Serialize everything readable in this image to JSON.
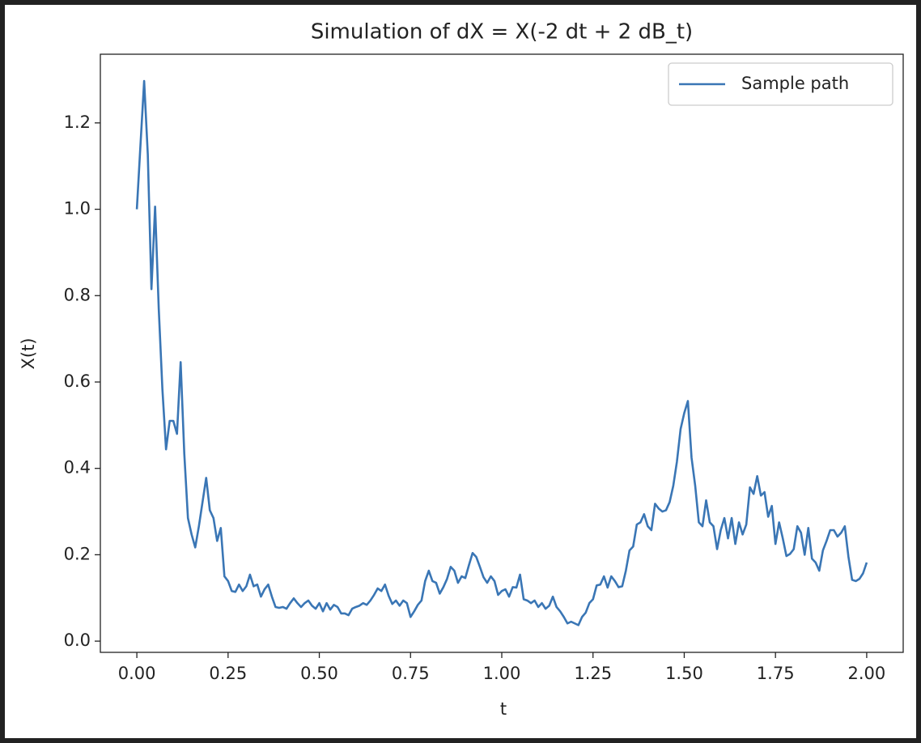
{
  "chart_data": {
    "type": "line",
    "title": "Simulation of dX = X(-2 dt + 2 dB_t)",
    "x_label": "t",
    "y_label": "X(t)",
    "x": [
      0,
      0.01,
      0.02,
      0.03,
      0.04,
      0.05,
      0.06,
      0.07,
      0.08,
      0.09,
      0.1,
      0.11,
      0.12,
      0.13,
      0.14,
      0.15,
      0.16,
      0.17,
      0.18,
      0.19,
      0.2,
      0.21,
      0.22,
      0.23,
      0.24,
      0.25,
      0.26,
      0.27,
      0.28,
      0.29,
      0.3,
      0.31,
      0.32,
      0.33,
      0.34,
      0.35,
      0.36,
      0.37,
      0.38,
      0.39,
      0.4,
      0.41,
      0.42,
      0.43,
      0.44,
      0.45,
      0.46,
      0.47,
      0.48,
      0.49,
      0.5,
      0.51,
      0.52,
      0.53,
      0.54,
      0.55,
      0.56,
      0.57,
      0.58,
      0.59,
      0.6,
      0.61,
      0.62,
      0.63,
      0.64,
      0.65,
      0.66,
      0.67,
      0.68,
      0.69,
      0.7,
      0.71,
      0.72,
      0.73,
      0.74,
      0.75,
      0.76,
      0.77,
      0.78,
      0.79,
      0.8,
      0.81,
      0.82,
      0.83,
      0.84,
      0.85,
      0.86,
      0.87,
      0.88,
      0.89,
      0.9,
      0.91,
      0.92,
      0.93,
      0.94,
      0.95,
      0.96,
      0.97,
      0.98,
      0.99,
      1,
      1.01,
      1.02,
      1.03,
      1.04,
      1.05,
      1.06,
      1.07,
      1.08,
      1.09,
      1.1,
      1.11,
      1.12,
      1.13,
      1.14,
      1.15,
      1.16,
      1.17,
      1.18,
      1.19,
      1.2,
      1.21,
      1.22,
      1.23,
      1.24,
      1.25,
      1.26,
      1.27,
      1.28,
      1.29,
      1.3,
      1.31,
      1.32,
      1.33,
      1.34,
      1.35,
      1.36,
      1.37,
      1.38,
      1.39,
      1.4,
      1.41,
      1.42,
      1.43,
      1.44,
      1.45,
      1.46,
      1.47,
      1.48,
      1.49,
      1.5,
      1.51,
      1.52,
      1.53,
      1.54,
      1.55,
      1.56,
      1.57,
      1.58,
      1.59,
      1.6,
      1.61,
      1.62,
      1.63,
      1.64,
      1.65,
      1.66,
      1.67,
      1.68,
      1.69,
      1.7,
      1.71,
      1.72,
      1.73,
      1.74,
      1.75,
      1.76,
      1.77,
      1.78,
      1.79,
      1.8,
      1.81,
      1.82,
      1.83,
      1.84,
      1.85,
      1.86,
      1.87,
      1.88,
      1.89,
      1.9,
      1.91,
      1.92,
      1.93,
      1.94,
      1.95,
      1.96,
      1.97,
      1.98,
      1.99,
      2
    ],
    "series": [
      {
        "name": "Sample path",
        "color": "#3a76b5",
        "values": [
          1.0,
          1.15,
          1.297,
          1.127,
          0.815,
          1.006,
          0.77,
          0.584,
          0.444,
          0.51,
          0.51,
          0.48,
          0.646,
          0.434,
          0.285,
          0.247,
          0.217,
          0.266,
          0.322,
          0.378,
          0.303,
          0.285,
          0.232,
          0.262,
          0.15,
          0.139,
          0.116,
          0.114,
          0.131,
          0.116,
          0.127,
          0.154,
          0.127,
          0.131,
          0.103,
          0.12,
          0.131,
          0.103,
          0.079,
          0.077,
          0.079,
          0.075,
          0.088,
          0.099,
          0.088,
          0.079,
          0.088,
          0.094,
          0.082,
          0.075,
          0.088,
          0.069,
          0.088,
          0.073,
          0.084,
          0.079,
          0.064,
          0.064,
          0.06,
          0.075,
          0.079,
          0.082,
          0.088,
          0.084,
          0.094,
          0.107,
          0.122,
          0.116,
          0.131,
          0.105,
          0.086,
          0.094,
          0.082,
          0.094,
          0.088,
          0.056,
          0.069,
          0.084,
          0.094,
          0.139,
          0.163,
          0.139,
          0.135,
          0.11,
          0.125,
          0.144,
          0.172,
          0.163,
          0.135,
          0.15,
          0.146,
          0.176,
          0.204,
          0.195,
          0.172,
          0.148,
          0.135,
          0.15,
          0.139,
          0.107,
          0.116,
          0.12,
          0.103,
          0.125,
          0.124,
          0.154,
          0.097,
          0.094,
          0.088,
          0.094,
          0.079,
          0.088,
          0.075,
          0.082,
          0.103,
          0.079,
          0.069,
          0.056,
          0.041,
          0.045,
          0.041,
          0.037,
          0.056,
          0.066,
          0.088,
          0.097,
          0.129,
          0.131,
          0.15,
          0.124,
          0.15,
          0.139,
          0.125,
          0.127,
          0.163,
          0.21,
          0.219,
          0.27,
          0.275,
          0.294,
          0.266,
          0.257,
          0.318,
          0.307,
          0.3,
          0.303,
          0.322,
          0.36,
          0.416,
          0.491,
          0.528,
          0.556,
          0.425,
          0.36,
          0.275,
          0.266,
          0.326,
          0.275,
          0.266,
          0.213,
          0.257,
          0.285,
          0.238,
          0.285,
          0.225,
          0.275,
          0.247,
          0.27,
          0.356,
          0.341,
          0.382,
          0.337,
          0.345,
          0.288,
          0.313,
          0.225,
          0.275,
          0.238,
          0.197,
          0.202,
          0.213,
          0.266,
          0.251,
          0.2,
          0.262,
          0.191,
          0.182,
          0.163,
          0.21,
          0.232,
          0.257,
          0.257,
          0.242,
          0.251,
          0.266,
          0.195,
          0.142,
          0.139,
          0.144,
          0.157,
          0.182
        ]
      }
    ],
    "xlim": [
      -0.1,
      2.1
    ],
    "xticks": [
      {
        "value": 0,
        "label": "0.00"
      },
      0.25,
      {
        "value": 0.5,
        "label": "0.50"
      },
      0.75,
      {
        "value": 1,
        "label": "1.00"
      },
      1.25,
      {
        "value": 1.5,
        "label": "1.50"
      },
      1.75,
      {
        "value": 2,
        "label": "2.00"
      }
    ],
    "ylim": [
      -0.026,
      1.359
    ],
    "yticks": [
      {
        "value": 0,
        "label": "0.0"
      },
      0.2,
      0.4,
      0.6,
      0.8,
      {
        "value": 1,
        "label": "1.0"
      },
      1.2
    ],
    "legend": "upper right"
  }
}
